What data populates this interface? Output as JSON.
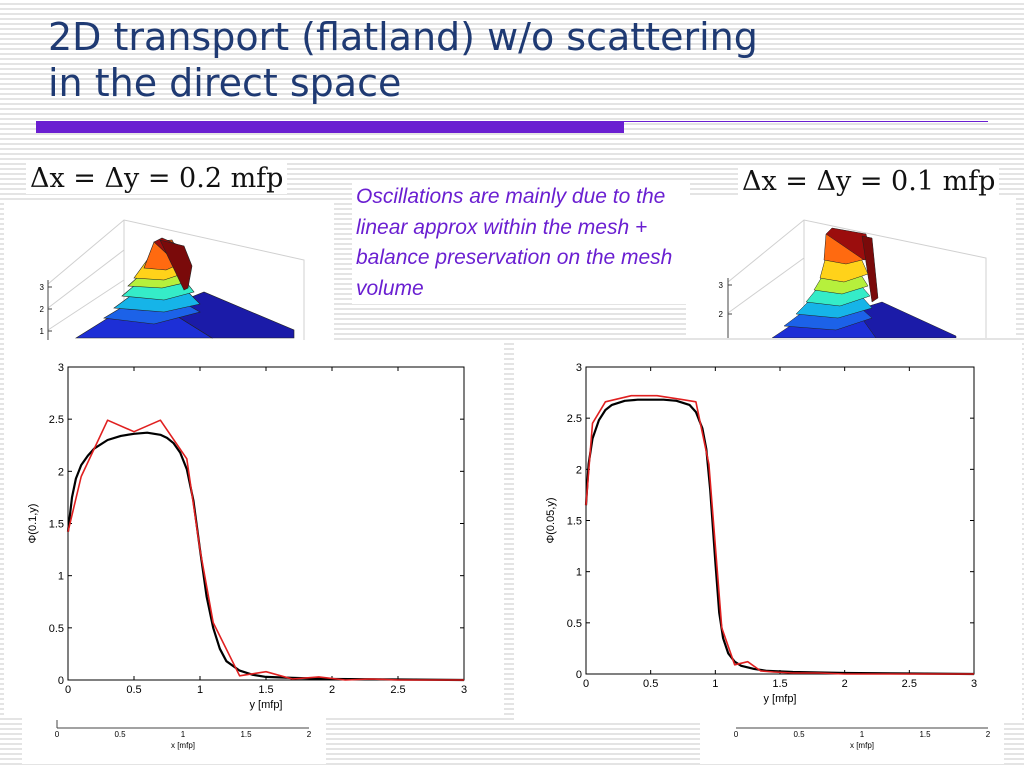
{
  "title": {
    "line1": "2D transport (flatland) w/o scattering",
    "line2": "in the direct space"
  },
  "colors": {
    "title": "#1f3a73",
    "accent": "#6a1fd1",
    "reference_curve": "#000000",
    "discrete_curve": "#e02020"
  },
  "equations": {
    "left": "Δx = Δy = 0.2 mfp",
    "right": "Δx = Δy = 0.1 mfp"
  },
  "callout": "Oscillations are mainly due to the linear approx within the mesh + balance preservation on the mesh volume",
  "surface_plots": {
    "left": {
      "z_ticks": [
        "3",
        "2",
        "1"
      ],
      "x_ticks": [
        "0",
        "0.5",
        "1",
        "1.5",
        "2"
      ],
      "xlabel": "x [mfp]"
    },
    "right": {
      "z_ticks": [
        "3",
        "2"
      ],
      "x_ticks": [
        "0",
        "0.5",
        "1",
        "1.5",
        "2"
      ],
      "xlabel": "x [mfp]"
    }
  },
  "chart_data": [
    {
      "type": "line",
      "xlabel": "y [mfp]",
      "ylabel": "Φ(0.1,y)",
      "xlim": [
        0,
        3
      ],
      "ylim": [
        0,
        3
      ],
      "x_ticks": [
        "0",
        "0.5",
        "1",
        "1.5",
        "2",
        "2.5",
        "3"
      ],
      "y_ticks": [
        "0",
        "0.5",
        "1",
        "1.5",
        "2",
        "2.5",
        "3"
      ],
      "grid": false,
      "series": [
        {
          "color": "#000000",
          "x": [
            0,
            0.03,
            0.06,
            0.1,
            0.15,
            0.2,
            0.3,
            0.4,
            0.5,
            0.6,
            0.7,
            0.75,
            0.8,
            0.85,
            0.9,
            0.95,
            1.0,
            1.05,
            1.1,
            1.15,
            1.2,
            1.3,
            1.4,
            1.5,
            1.7,
            2.0,
            2.5,
            3.0
          ],
          "y": [
            1.42,
            1.75,
            1.93,
            2.06,
            2.15,
            2.22,
            2.3,
            2.34,
            2.36,
            2.37,
            2.35,
            2.32,
            2.27,
            2.18,
            2.02,
            1.72,
            1.25,
            0.8,
            0.5,
            0.3,
            0.18,
            0.09,
            0.05,
            0.03,
            0.02,
            0.01,
            0.005,
            0.0
          ]
        },
        {
          "color": "#e02020",
          "x": [
            0,
            0.1,
            0.3,
            0.5,
            0.7,
            0.9,
            1.0,
            1.1,
            1.3,
            1.5,
            1.7,
            1.9,
            2.1,
            2.3,
            2.5,
            2.7,
            2.9,
            3.0
          ],
          "y": [
            1.42,
            1.95,
            2.49,
            2.38,
            2.49,
            2.12,
            1.25,
            0.55,
            0.04,
            0.08,
            0.01,
            0.03,
            0.0,
            0.01,
            0.0,
            0.0,
            0.0,
            0.0
          ]
        }
      ]
    },
    {
      "type": "line",
      "xlabel": "y [mfp]",
      "ylabel": "Φ(0.05,y)",
      "xlim": [
        0,
        3
      ],
      "ylim": [
        0,
        3
      ],
      "x_ticks": [
        "0",
        "0.5",
        "1",
        "1.5",
        "2",
        "2.5",
        "3"
      ],
      "y_ticks": [
        "0",
        "0.5",
        "1",
        "1.5",
        "2",
        "2.5",
        "3"
      ],
      "grid": false,
      "series": [
        {
          "color": "#000000",
          "x": [
            0,
            0.02,
            0.05,
            0.1,
            0.15,
            0.2,
            0.3,
            0.4,
            0.5,
            0.6,
            0.7,
            0.8,
            0.85,
            0.9,
            0.93,
            0.96,
            1.0,
            1.03,
            1.06,
            1.1,
            1.15,
            1.2,
            1.3,
            1.4,
            1.6,
            2.0,
            2.5,
            3.0
          ],
          "y": [
            1.65,
            2.05,
            2.3,
            2.48,
            2.58,
            2.63,
            2.67,
            2.68,
            2.68,
            2.68,
            2.67,
            2.63,
            2.56,
            2.4,
            2.2,
            1.8,
            1.1,
            0.6,
            0.35,
            0.2,
            0.12,
            0.08,
            0.05,
            0.03,
            0.02,
            0.01,
            0.005,
            0.0
          ]
        },
        {
          "color": "#e02020",
          "x": [
            0,
            0.05,
            0.15,
            0.35,
            0.55,
            0.75,
            0.85,
            0.95,
            1.05,
            1.15,
            1.25,
            1.35,
            1.45,
            1.6,
            1.8,
            2.0,
            2.5,
            3.0
          ],
          "y": [
            1.65,
            2.45,
            2.66,
            2.72,
            2.72,
            2.68,
            2.66,
            2.05,
            0.45,
            0.09,
            0.12,
            0.03,
            0.02,
            0.01,
            0.01,
            0.0,
            0.0,
            0.0
          ]
        }
      ]
    }
  ]
}
